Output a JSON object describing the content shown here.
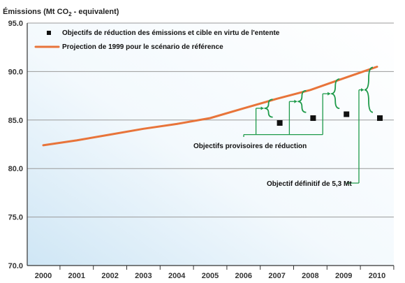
{
  "chart_data": {
    "type": "line",
    "ylabel": "Émissions (Mt CO",
    "ylabel_sub": "2",
    "ylabel_end": " - equivalent)",
    "ylim": [
      70,
      95
    ],
    "yticks": [
      "70.0",
      "75.0",
      "80.0",
      "85.0",
      "90.0",
      "95.0"
    ],
    "yticks_values": [
      70,
      75,
      80,
      85,
      90,
      95
    ],
    "categories": [
      "2000",
      "2001",
      "2002",
      "2003",
      "2004",
      "2005",
      "2006",
      "2007",
      "2008",
      "2009",
      "2010"
    ],
    "grid": "horizontal",
    "legend_position": "top-left",
    "series": [
      {
        "name": "Projection de 1999 pour le scénario de référence",
        "color": "#e8743a",
        "x": [
          2000,
          2001,
          2002,
          2003,
          2004,
          2005,
          2006,
          2007,
          2008,
          2009,
          2010
        ],
        "values": [
          82.4,
          82.9,
          83.5,
          84.1,
          84.6,
          85.2,
          86.2,
          87.2,
          88.1,
          89.3,
          90.5
        ]
      },
      {
        "name": "Objectifs de réduction des émissions et cible en virtu de l'entente",
        "marker": "square",
        "color": "#111111",
        "x": [
          2007,
          2008,
          2009,
          2010
        ],
        "values": [
          84.7,
          85.2,
          85.6,
          85.2
        ]
      }
    ],
    "annotations": {
      "interim": "Objectifs provisoires de réduction",
      "final": "Objectif définitif de  5,3 Mt"
    },
    "annotation_color": "#1e9a4a"
  }
}
